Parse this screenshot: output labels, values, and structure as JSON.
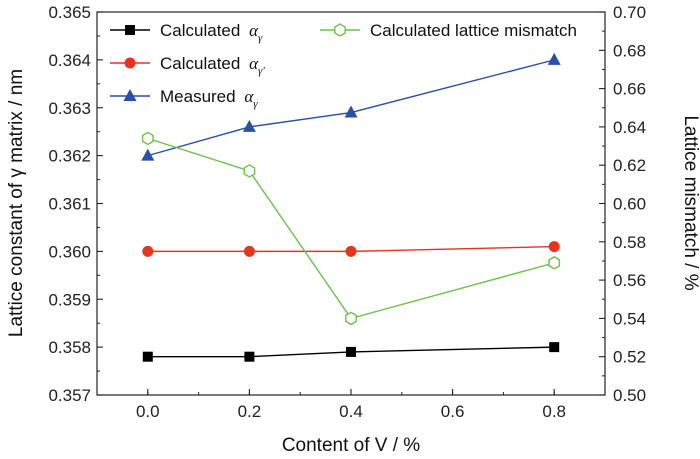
{
  "chart_data": {
    "type": "line",
    "x": [
      0.0,
      0.2,
      0.4,
      0.8
    ],
    "xlabel": "Content of V / %",
    "xlim": [
      -0.1,
      0.9
    ],
    "x_ticks": [
      "0.0",
      "0.2",
      "0.4",
      "0.6",
      "0.8"
    ],
    "x_tick_values": [
      0.0,
      0.2,
      0.4,
      0.6,
      0.8
    ],
    "ylabel_left": "Lattice constant of γ matrix / nm",
    "ylim_left": [
      0.357,
      0.365
    ],
    "y_ticks_left": [
      "0.357",
      "0.358",
      "0.359",
      "0.360",
      "0.361",
      "0.362",
      "0.363",
      "0.364",
      "0.365"
    ],
    "ylabel_right": "Lattice mismatch / %",
    "ylim_right": [
      0.5,
      0.7
    ],
    "y_ticks_right": [
      "0.50",
      "0.52",
      "0.54",
      "0.56",
      "0.58",
      "0.60",
      "0.62",
      "0.64",
      "0.66",
      "0.68",
      "0.70"
    ],
    "grid": false,
    "legend_placement": "top",
    "series": [
      {
        "name": "Calculated αγ",
        "legend_text": "Calculated ",
        "legend_greek": "α",
        "legend_sub": "γ",
        "axis": "left",
        "marker": "square",
        "color": "#000000",
        "values": [
          0.3578,
          0.3578,
          0.3579,
          0.358
        ]
      },
      {
        "name": "Calculated αγ'",
        "legend_text": "Calculated ",
        "legend_greek": "α",
        "legend_sub": "γ'",
        "axis": "left",
        "marker": "circle",
        "color": "#e8341c",
        "values": [
          0.36,
          0.36,
          0.36,
          0.3601
        ]
      },
      {
        "name": "Measured αγ",
        "legend_text": "Measured ",
        "legend_greek": "α",
        "legend_sub": "γ",
        "axis": "left",
        "marker": "triangle",
        "color": "#2a4fa8",
        "values": [
          0.362,
          0.3626,
          0.3629,
          0.364
        ]
      },
      {
        "name": "Calculated lattice mismatch",
        "legend_text": "Calculated lattice mismatch",
        "legend_greek": "",
        "legend_sub": "",
        "axis": "right",
        "marker": "open-hexagon",
        "color": "#6cc24a",
        "values": [
          0.634,
          0.617,
          0.54,
          0.569
        ]
      }
    ]
  }
}
